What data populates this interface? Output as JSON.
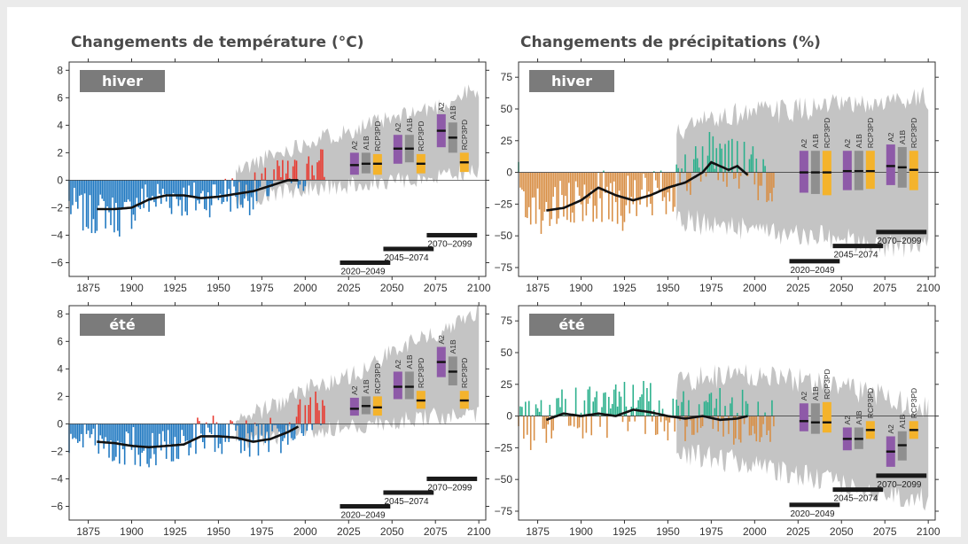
{
  "titles": {
    "temperature": "Changements de température (°C)",
    "precipitation": "Changements de précipitations (%)"
  },
  "colors": {
    "background": "#ebebeb",
    "temp_positive": "#e8392f",
    "temp_negative": "#1f78c1",
    "precip_positive": "#2bb08c",
    "precip_negative": "#d88f46",
    "spread": "#c4c4c4",
    "A2": "#8e5aa8",
    "A1B": "#8f8f8f",
    "RCP3PD": "#f4b32c",
    "season_label_bg": "#7b7b7b"
  },
  "chart_data": [
    {
      "id": "temp-winter",
      "type": "bar",
      "season": "hiver",
      "variable": "temperature",
      "xlim": [
        1864,
        2104
      ],
      "ylim": [
        -7,
        8.6
      ],
      "xticks": [
        1875,
        1900,
        1925,
        1950,
        1975,
        2000,
        2025,
        2050,
        2075,
        2100
      ],
      "yticks": [
        -6,
        -4,
        -2,
        0,
        2,
        4,
        6,
        8
      ],
      "ytick_labels": [
        "−6",
        "−4",
        "−2",
        "0",
        "2",
        "4",
        "6",
        "8"
      ],
      "obs_start": 1864,
      "obs_end": 2011,
      "obs_anchors": [
        [
          1864,
          -1.8
        ],
        [
          1875,
          -2.6
        ],
        [
          1885,
          -2.2
        ],
        [
          1895,
          -2.8
        ],
        [
          1905,
          -1.5
        ],
        [
          1915,
          -1.3
        ],
        [
          1925,
          -1.2
        ],
        [
          1935,
          -1.5
        ],
        [
          1945,
          -1.2
        ],
        [
          1955,
          -0.9
        ],
        [
          1965,
          -1.2
        ],
        [
          1975,
          -0.7
        ],
        [
          1985,
          0.2
        ],
        [
          1995,
          0.3
        ],
        [
          2005,
          1.0
        ],
        [
          2011,
          1.0
        ]
      ],
      "smoothed": [
        [
          1880,
          -2.1
        ],
        [
          1890,
          -2.1
        ],
        [
          1900,
          -2.0
        ],
        [
          1910,
          -1.4
        ],
        [
          1920,
          -1.1
        ],
        [
          1930,
          -1.1
        ],
        [
          1940,
          -1.3
        ],
        [
          1950,
          -1.2
        ],
        [
          1960,
          -1.0
        ],
        [
          1970,
          -0.8
        ],
        [
          1980,
          -0.4
        ],
        [
          1990,
          0.0
        ],
        [
          1996,
          0.0
        ]
      ],
      "spread_upper": [
        [
          1960,
          0.6
        ],
        [
          1975,
          1.5
        ],
        [
          1990,
          2.2
        ],
        [
          2005,
          3.0
        ],
        [
          2020,
          3.4
        ],
        [
          2035,
          4.0
        ],
        [
          2050,
          4.4
        ],
        [
          2065,
          5.0
        ],
        [
          2080,
          5.5
        ],
        [
          2095,
          6.5
        ],
        [
          2100,
          6.0
        ]
      ],
      "spread_lower": [
        [
          1960,
          -1.4
        ],
        [
          1975,
          -1.2
        ],
        [
          1990,
          -0.9
        ],
        [
          2005,
          -0.6
        ],
        [
          2020,
          -0.4
        ],
        [
          2035,
          -0.3
        ],
        [
          2050,
          -0.1
        ],
        [
          2065,
          0.1
        ],
        [
          2080,
          0.3
        ],
        [
          2095,
          0.6
        ],
        [
          2100,
          0.8
        ]
      ],
      "periods": [
        {
          "label": "2020–2049",
          "start": 2020,
          "end": 2049,
          "y": -6.0
        },
        {
          "label": "2045–2074",
          "start": 2045,
          "end": 2074,
          "y": -5.0
        },
        {
          "label": "2070–2099",
          "start": 2070,
          "end": 2099,
          "y": -4.0
        }
      ],
      "scenarios": [
        {
          "period": "2020–2049",
          "A2": [
            0.4,
            1.1,
            2.0
          ],
          "A1B": [
            0.5,
            1.2,
            2.0
          ],
          "RCP3PD": [
            0.4,
            1.2,
            1.9
          ]
        },
        {
          "period": "2045–2074",
          "A2": [
            1.2,
            2.3,
            3.3
          ],
          "A1B": [
            1.3,
            2.3,
            3.3
          ],
          "RCP3PD": [
            0.5,
            1.2,
            1.9
          ]
        },
        {
          "period": "2070–2099",
          "A2": [
            2.4,
            3.6,
            4.8
          ],
          "A1B": [
            2.0,
            3.1,
            4.2
          ],
          "RCP3PD": [
            0.6,
            1.3,
            2.0
          ]
        }
      ]
    },
    {
      "id": "precip-winter",
      "type": "bar",
      "season": "hiver",
      "variable": "precipitation",
      "xlim": [
        1864,
        2104
      ],
      "ylim": [
        -82,
        87
      ],
      "xticks": [
        1875,
        1900,
        1925,
        1950,
        1975,
        2000,
        2025,
        2050,
        2075,
        2100
      ],
      "yticks": [
        -75,
        -50,
        -25,
        0,
        25,
        50,
        75
      ],
      "ytick_labels": [
        "−75",
        "−50",
        "−25",
        "0",
        "25",
        "50",
        "75"
      ],
      "obs_start": 1864,
      "obs_end": 2011,
      "obs_anchors": [
        [
          1864,
          -10
        ],
        [
          1875,
          -30
        ],
        [
          1885,
          -28
        ],
        [
          1895,
          -30
        ],
        [
          1905,
          -20
        ],
        [
          1915,
          -18
        ],
        [
          1925,
          -25
        ],
        [
          1935,
          -20
        ],
        [
          1945,
          -15
        ],
        [
          1955,
          -8
        ],
        [
          1965,
          0
        ],
        [
          1975,
          15
        ],
        [
          1985,
          8
        ],
        [
          1995,
          5
        ],
        [
          2005,
          -10
        ],
        [
          2011,
          -10
        ]
      ],
      "smoothed": [
        [
          1880,
          -30
        ],
        [
          1890,
          -28
        ],
        [
          1900,
          -22
        ],
        [
          1910,
          -12
        ],
        [
          1920,
          -18
        ],
        [
          1930,
          -22
        ],
        [
          1940,
          -18
        ],
        [
          1950,
          -12
        ],
        [
          1960,
          -8
        ],
        [
          1970,
          0
        ],
        [
          1975,
          8
        ],
        [
          1980,
          5
        ],
        [
          1985,
          2
        ],
        [
          1990,
          5
        ],
        [
          1996,
          -2
        ]
      ],
      "spread_upper": [
        [
          1955,
          30
        ],
        [
          1970,
          40
        ],
        [
          1985,
          45
        ],
        [
          2000,
          48
        ],
        [
          2015,
          48
        ],
        [
          2030,
          50
        ],
        [
          2045,
          52
        ],
        [
          2060,
          52
        ],
        [
          2075,
          55
        ],
        [
          2090,
          60
        ],
        [
          2100,
          58
        ]
      ],
      "spread_lower": [
        [
          1955,
          -38
        ],
        [
          1970,
          -40
        ],
        [
          1985,
          -42
        ],
        [
          2000,
          -45
        ],
        [
          2015,
          -48
        ],
        [
          2030,
          -50
        ],
        [
          2045,
          -52
        ],
        [
          2060,
          -55
        ],
        [
          2075,
          -58
        ],
        [
          2090,
          -60
        ],
        [
          2100,
          -60
        ]
      ],
      "periods": [
        {
          "label": "2020–2049",
          "start": 2020,
          "end": 2049,
          "y": -70
        },
        {
          "label": "2045–2074",
          "start": 2045,
          "end": 2074,
          "y": -58
        },
        {
          "label": "2070–2099",
          "start": 2070,
          "end": 2099,
          "y": -47
        }
      ],
      "scenarios": [
        {
          "period": "2020–2049",
          "A2": [
            -16,
            0,
            17
          ],
          "A1B": [
            -17,
            0,
            17
          ],
          "RCP3PD": [
            -18,
            0,
            17
          ]
        },
        {
          "period": "2045–2074",
          "A2": [
            -14,
            1,
            17
          ],
          "A1B": [
            -14,
            1,
            17
          ],
          "RCP3PD": [
            -13,
            1,
            17
          ]
        },
        {
          "period": "2070–2099",
          "A2": [
            -10,
            5,
            22
          ],
          "A1B": [
            -12,
            4,
            20
          ],
          "RCP3PD": [
            -14,
            2,
            17
          ]
        }
      ]
    },
    {
      "id": "temp-summer",
      "type": "bar",
      "season": "été",
      "variable": "temperature",
      "xlim": [
        1864,
        2104
      ],
      "ylim": [
        -7,
        8.6
      ],
      "xticks": [
        1875,
        1900,
        1925,
        1950,
        1975,
        2000,
        2025,
        2050,
        2075,
        2100
      ],
      "yticks": [
        -6,
        -4,
        -2,
        0,
        2,
        4,
        6,
        8
      ],
      "ytick_labels": [
        "−6",
        "−4",
        "−2",
        "0",
        "2",
        "4",
        "6",
        "8"
      ],
      "obs_start": 1864,
      "obs_end": 2011,
      "obs_anchors": [
        [
          1864,
          -1.3
        ],
        [
          1875,
          -1.4
        ],
        [
          1885,
          -1.5
        ],
        [
          1895,
          -1.6
        ],
        [
          1905,
          -1.8
        ],
        [
          1915,
          -1.7
        ],
        [
          1925,
          -1.5
        ],
        [
          1935,
          -1.0
        ],
        [
          1945,
          -0.9
        ],
        [
          1955,
          -0.9
        ],
        [
          1965,
          -1.2
        ],
        [
          1975,
          -1.3
        ],
        [
          1985,
          -0.8
        ],
        [
          1995,
          0.2
        ],
        [
          2005,
          1.0
        ],
        [
          2011,
          1.2
        ]
      ],
      "smoothed": [
        [
          1880,
          -1.3
        ],
        [
          1890,
          -1.4
        ],
        [
          1900,
          -1.6
        ],
        [
          1910,
          -1.7
        ],
        [
          1920,
          -1.6
        ],
        [
          1930,
          -1.5
        ],
        [
          1940,
          -0.9
        ],
        [
          1950,
          -0.9
        ],
        [
          1960,
          -1.0
        ],
        [
          1970,
          -1.3
        ],
        [
          1980,
          -1.1
        ],
        [
          1990,
          -0.6
        ],
        [
          1996,
          -0.2
        ]
      ],
      "spread_upper": [
        [
          1960,
          0.4
        ],
        [
          1975,
          1.0
        ],
        [
          1990,
          1.8
        ],
        [
          2005,
          2.8
        ],
        [
          2020,
          3.2
        ],
        [
          2035,
          4.0
        ],
        [
          2050,
          5.2
        ],
        [
          2065,
          6.2
        ],
        [
          2080,
          6.8
        ],
        [
          2095,
          8.0
        ],
        [
          2100,
          8.3
        ]
      ],
      "spread_lower": [
        [
          1960,
          -1.4
        ],
        [
          1975,
          -1.2
        ],
        [
          1990,
          -0.7
        ],
        [
          2005,
          -0.4
        ],
        [
          2020,
          -0.3
        ],
        [
          2035,
          -0.1
        ],
        [
          2050,
          0.2
        ],
        [
          2065,
          0.4
        ],
        [
          2080,
          0.6
        ],
        [
          2095,
          0.7
        ],
        [
          2100,
          0.8
        ]
      ],
      "periods": [
        {
          "label": "2020–2049",
          "start": 2020,
          "end": 2049,
          "y": -6.0
        },
        {
          "label": "2045–2074",
          "start": 2045,
          "end": 2074,
          "y": -5.0
        },
        {
          "label": "2070–2099",
          "start": 2070,
          "end": 2099,
          "y": -4.0
        }
      ],
      "scenarios": [
        {
          "period": "2020–2049",
          "A2": [
            0.6,
            1.1,
            1.9
          ],
          "A1B": [
            0.7,
            1.3,
            2.0
          ],
          "RCP3PD": [
            0.6,
            1.2,
            2.0
          ]
        },
        {
          "period": "2045–2074",
          "A2": [
            1.8,
            2.7,
            3.8
          ],
          "A1B": [
            1.8,
            2.7,
            3.8
          ],
          "RCP3PD": [
            1.1,
            1.7,
            2.4
          ]
        },
        {
          "period": "2070–2099",
          "A2": [
            3.4,
            4.5,
            5.6
          ],
          "A1B": [
            2.8,
            3.8,
            4.9
          ],
          "RCP3PD": [
            1.1,
            1.7,
            2.4
          ]
        }
      ]
    },
    {
      "id": "precip-summer",
      "type": "bar",
      "season": "été",
      "variable": "precipitation",
      "xlim": [
        1864,
        2104
      ],
      "ylim": [
        -82,
        87
      ],
      "xticks": [
        1875,
        1900,
        1925,
        1950,
        1975,
        2000,
        2025,
        2050,
        2075,
        2100
      ],
      "yticks": [
        -75,
        -50,
        -25,
        0,
        25,
        50,
        75
      ],
      "ytick_labels": [
        "−75",
        "−50",
        "−25",
        "0",
        "25",
        "50",
        "75"
      ],
      "obs_start": 1864,
      "obs_end": 2011,
      "obs_anchors": [
        [
          1864,
          -10
        ],
        [
          1875,
          -5
        ],
        [
          1885,
          5
        ],
        [
          1895,
          0
        ],
        [
          1905,
          5
        ],
        [
          1915,
          3
        ],
        [
          1925,
          5
        ],
        [
          1935,
          8
        ],
        [
          1945,
          2
        ],
        [
          1955,
          3
        ],
        [
          1965,
          0
        ],
        [
          1975,
          5
        ],
        [
          1985,
          -3
        ],
        [
          1995,
          0
        ],
        [
          2005,
          -5
        ],
        [
          2011,
          -8
        ]
      ],
      "smoothed": [
        [
          1880,
          -3
        ],
        [
          1890,
          2
        ],
        [
          1900,
          0
        ],
        [
          1910,
          2
        ],
        [
          1920,
          0
        ],
        [
          1930,
          5
        ],
        [
          1940,
          3
        ],
        [
          1950,
          0
        ],
        [
          1960,
          -2
        ],
        [
          1970,
          0
        ],
        [
          1980,
          -3
        ],
        [
          1990,
          -2
        ],
        [
          1996,
          0
        ]
      ],
      "spread_upper": [
        [
          1955,
          25
        ],
        [
          1970,
          30
        ],
        [
          1985,
          32
        ],
        [
          2000,
          33
        ],
        [
          2015,
          30
        ],
        [
          2030,
          28
        ],
        [
          2045,
          25
        ],
        [
          2060,
          20
        ],
        [
          2075,
          15
        ],
        [
          2090,
          10
        ],
        [
          2100,
          8
        ]
      ],
      "spread_lower": [
        [
          1955,
          -30
        ],
        [
          1970,
          -32
        ],
        [
          1985,
          -35
        ],
        [
          2000,
          -38
        ],
        [
          2015,
          -42
        ],
        [
          2030,
          -48
        ],
        [
          2045,
          -52
        ],
        [
          2060,
          -57
        ],
        [
          2075,
          -62
        ],
        [
          2090,
          -65
        ],
        [
          2100,
          -65
        ]
      ],
      "periods": [
        {
          "label": "2020–2049",
          "start": 2020,
          "end": 2049,
          "y": -70
        },
        {
          "label": "2045–2074",
          "start": 2045,
          "end": 2074,
          "y": -58
        },
        {
          "label": "2070–2099",
          "start": 2070,
          "end": 2099,
          "y": -47
        }
      ],
      "scenarios": [
        {
          "period": "2020–2049",
          "A2": [
            -12,
            -4,
            10
          ],
          "A1B": [
            -14,
            -5,
            10
          ],
          "RCP3PD": [
            -13,
            -5,
            11
          ]
        },
        {
          "period": "2045–2074",
          "A2": [
            -27,
            -18,
            -9
          ],
          "A1B": [
            -26,
            -18,
            -9
          ],
          "RCP3PD": [
            -18,
            -11,
            -4
          ]
        },
        {
          "period": "2070–2099",
          "A2": [
            -40,
            -28,
            -16
          ],
          "A1B": [
            -35,
            -23,
            -12
          ],
          "RCP3PD": [
            -18,
            -11,
            -4
          ]
        }
      ]
    }
  ]
}
